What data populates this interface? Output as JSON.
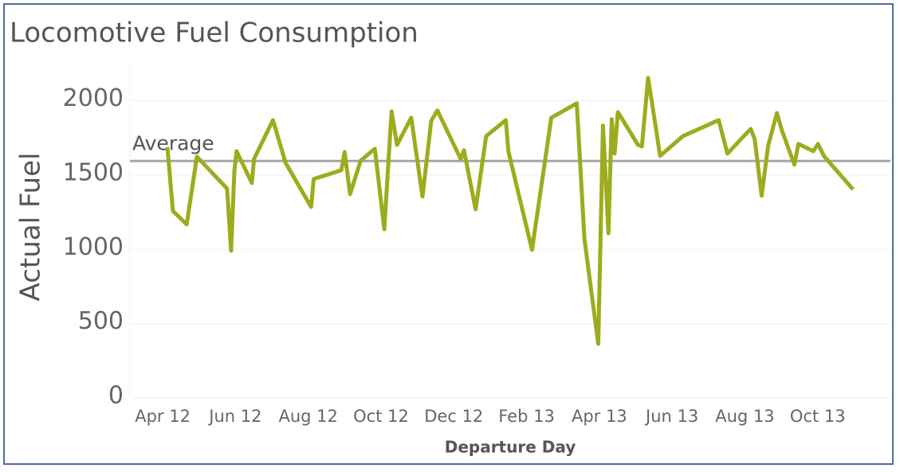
{
  "chart_data": {
    "type": "line",
    "title": "Locomotive Fuel Consumption",
    "x_label": "Departure Day",
    "y_label": "Actual Fuel",
    "xlim": [
      -0.9,
      20
    ],
    "xticks": [
      {
        "value": 0,
        "label": "Apr 12"
      },
      {
        "value": 2,
        "label": "Jun 12"
      },
      {
        "value": 4,
        "label": "Aug 12"
      },
      {
        "value": 6,
        "label": "Oct 12"
      },
      {
        "value": 8,
        "label": "Dec 12"
      },
      {
        "value": 10,
        "label": "Feb 13"
      },
      {
        "value": 12,
        "label": "Apr 13"
      },
      {
        "value": 14,
        "label": "Jun 13"
      },
      {
        "value": 16,
        "label": "Aug 13"
      },
      {
        "value": 18,
        "label": "Oct 13"
      }
    ],
    "ylim": [
      0,
      2250
    ],
    "yticks": [
      0,
      500,
      1000,
      1500,
      2000
    ],
    "grid": true,
    "reference_line": {
      "label": "Average",
      "value": 1595,
      "color": "#a6a6a6"
    },
    "series": [
      {
        "name": "Actual Fuel",
        "color": "#9cac1e",
        "x": [
          0.13,
          0.28,
          0.66,
          0.94,
          1.77,
          1.88,
          1.97,
          2.03,
          2.45,
          2.51,
          3.03,
          3.38,
          4.08,
          4.15,
          4.91,
          5.0,
          5.15,
          5.44,
          5.83,
          6.09,
          6.29,
          6.44,
          6.83,
          7.14,
          7.38,
          7.55,
          8.19,
          8.28,
          8.6,
          8.89,
          9.43,
          9.5,
          10.15,
          10.68,
          11.38,
          11.59,
          11.97,
          12.1,
          12.25,
          12.34,
          12.42,
          12.51,
          13.06,
          13.17,
          13.34,
          13.45,
          13.67,
          14.3,
          15.28,
          15.52,
          16.16,
          16.27,
          16.46,
          16.64,
          16.88,
          17.01,
          17.36,
          17.47,
          17.88,
          18.01,
          18.17,
          18.97
        ],
        "values": [
          1688,
          1259,
          1168,
          1624,
          1409,
          991,
          1527,
          1661,
          1447,
          1608,
          1870,
          1581,
          1286,
          1474,
          1533,
          1656,
          1372,
          1597,
          1677,
          1136,
          1929,
          1704,
          1886,
          1356,
          1865,
          1935,
          1608,
          1667,
          1270,
          1763,
          1870,
          1661,
          997,
          1886,
          1983,
          1072,
          364,
          1833,
          1109,
          1876,
          1645,
          1924,
          1704,
          1693,
          2154,
          1983,
          1629,
          1763,
          1870,
          1645,
          1811,
          1742,
          1361,
          1699,
          1918,
          1806,
          1570,
          1710,
          1661,
          1710,
          1629,
          1404
        ]
      }
    ]
  }
}
